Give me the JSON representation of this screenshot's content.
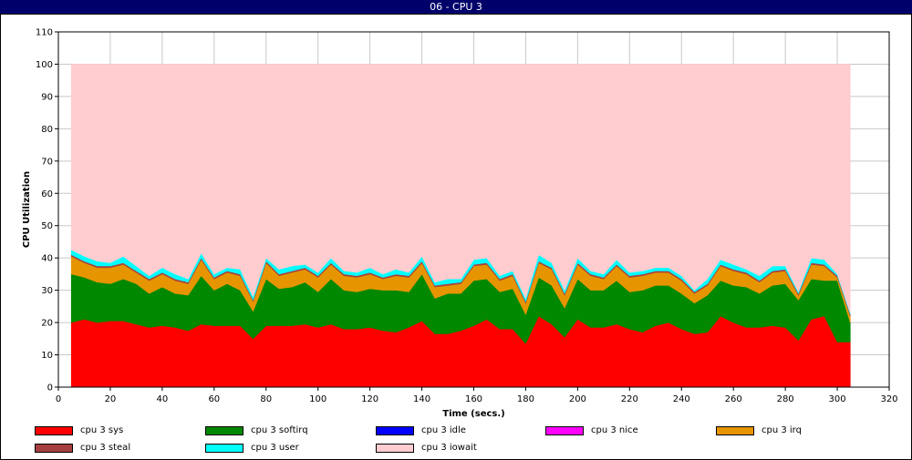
{
  "window": {
    "title": "06 - CPU 3"
  },
  "chart_data": {
    "type": "area",
    "stacked": true,
    "title": "06 - CPU 3",
    "xlabel": "Time (secs.)",
    "ylabel": "CPU Utilization",
    "xlim": [
      0,
      320
    ],
    "ylim": [
      0,
      110
    ],
    "xticks": [
      0,
      20,
      40,
      60,
      80,
      100,
      120,
      140,
      160,
      180,
      200,
      220,
      240,
      260,
      280,
      300,
      320
    ],
    "yticks": [
      0,
      10,
      20,
      30,
      40,
      50,
      60,
      70,
      80,
      90,
      100,
      110
    ],
    "grid": true,
    "legend_position": "bottom",
    "x": [
      5,
      10,
      15,
      20,
      25,
      30,
      35,
      40,
      45,
      50,
      55,
      60,
      65,
      70,
      75,
      80,
      85,
      90,
      95,
      100,
      105,
      110,
      115,
      120,
      125,
      130,
      135,
      140,
      145,
      150,
      155,
      160,
      165,
      170,
      175,
      180,
      185,
      190,
      195,
      200,
      205,
      210,
      215,
      220,
      225,
      230,
      235,
      240,
      245,
      250,
      255,
      260,
      265,
      270,
      275,
      280,
      285,
      290,
      295,
      300,
      305
    ],
    "series": [
      {
        "name": "cpu 3 sys",
        "color": "#ff0000",
        "values": [
          20,
          21,
          20,
          20.5,
          20.5,
          19.5,
          18.5,
          19,
          18.5,
          17.5,
          19.5,
          19,
          19,
          19,
          15,
          19,
          19,
          19,
          19.5,
          18.5,
          19.5,
          18,
          18,
          18.5,
          17.5,
          17,
          18.5,
          20.5,
          16.5,
          16.5,
          17.5,
          19,
          21,
          18,
          18,
          13.5,
          22,
          19.5,
          15.5,
          21,
          18.5,
          18.5,
          19.5,
          18,
          17,
          19,
          20,
          18,
          16.5,
          17,
          22,
          20,
          18.5,
          18.5,
          19,
          18.5,
          14.5,
          21,
          22,
          14,
          14
        ]
      },
      {
        "name": "cpu 3 softirq",
        "color": "#008800",
        "values": [
          15,
          13,
          12.5,
          11.5,
          13,
          12.5,
          10.5,
          12,
          10.5,
          11,
          15,
          11,
          13,
          11,
          8.5,
          14.5,
          11.5,
          12,
          13,
          11,
          14,
          12,
          11.5,
          12,
          12.5,
          13,
          11,
          14.5,
          11,
          12.5,
          11.5,
          14,
          12.5,
          11.5,
          12.5,
          9,
          12,
          12,
          9,
          12.5,
          11.5,
          11.5,
          13.5,
          11.5,
          13,
          12.5,
          11.5,
          11,
          9.5,
          11.5,
          11,
          11.5,
          12.5,
          10.5,
          12.5,
          13.5,
          12.5,
          12.5,
          11,
          19,
          6
        ]
      },
      {
        "name": "cpu 3 idle",
        "color": "#0000ff",
        "values": [
          0,
          0,
          0,
          0,
          0,
          0,
          0,
          0,
          0,
          0,
          0,
          0,
          0,
          0,
          0,
          0,
          0,
          0,
          0,
          0,
          0,
          0,
          0,
          0,
          0,
          0,
          0,
          0,
          0,
          0,
          0,
          0,
          0,
          0,
          0,
          0,
          0,
          0,
          0,
          0,
          0,
          0,
          0,
          0,
          0,
          0,
          0,
          0,
          0,
          0,
          0,
          0,
          0,
          0,
          0,
          0,
          0,
          0,
          0,
          0,
          0
        ]
      },
      {
        "name": "cpu 3 nice",
        "color": "#ff00ff",
        "values": [
          0,
          0,
          0,
          0,
          0,
          0,
          0,
          0,
          0,
          0,
          0,
          0,
          0,
          0,
          0,
          0,
          0,
          0,
          0,
          0,
          0,
          0,
          0,
          0,
          0,
          0,
          0,
          0,
          0,
          0,
          0,
          0,
          0,
          0,
          0,
          0,
          0,
          0,
          0,
          0,
          0,
          0,
          0,
          0,
          0,
          0,
          0,
          0,
          0,
          0,
          0,
          0,
          0,
          0,
          0,
          0,
          0,
          0,
          0,
          0,
          0
        ]
      },
      {
        "name": "cpu 3 irq",
        "color": "#e69500",
        "values": [
          5.5,
          4.5,
          4.5,
          5,
          4.5,
          3.5,
          4,
          4,
          4,
          3.5,
          5,
          3.5,
          3.5,
          4.5,
          3,
          5,
          4,
          4.5,
          4,
          4.5,
          4.5,
          4.5,
          4.5,
          4.5,
          3.5,
          4.5,
          4.5,
          3.5,
          3.5,
          2.5,
          3,
          4.5,
          4.5,
          3.5,
          4,
          3.5,
          4.5,
          5,
          4,
          4.5,
          4.5,
          3.5,
          4.5,
          4.5,
          4.5,
          4,
          4,
          4,
          3,
          3,
          4.5,
          4.5,
          4,
          3.5,
          4,
          4,
          1.5,
          4.5,
          4.5,
          1,
          2
        ]
      },
      {
        "name": "cpu 3 steal",
        "color": "#a64040",
        "values": [
          0.5,
          0.5,
          0.5,
          0.5,
          0.5,
          0.5,
          0.5,
          0.5,
          0.5,
          0.5,
          0.5,
          0.5,
          0.5,
          0.5,
          0.5,
          0.5,
          0.5,
          0.5,
          0.5,
          0.5,
          0.5,
          0.5,
          0.5,
          0.5,
          0.5,
          0.5,
          0.5,
          0.5,
          0.5,
          0.5,
          0.5,
          0.5,
          0.5,
          0.5,
          0.5,
          0.5,
          0.5,
          0.5,
          0.5,
          0.5,
          0.5,
          0.5,
          0.5,
          0.5,
          0.5,
          0.5,
          0.5,
          0.5,
          0.5,
          0.5,
          0.5,
          0.5,
          0.5,
          0.5,
          0.5,
          0.5,
          0.5,
          0.5,
          0.5,
          0.5,
          0.5
        ]
      },
      {
        "name": "cpu 3 user",
        "color": "#00ffff",
        "values": [
          1.5,
          1.5,
          1.5,
          1,
          2,
          1.5,
          1,
          1.5,
          1.5,
          1,
          1.5,
          1,
          1,
          1.5,
          1,
          1,
          1.5,
          1.5,
          1,
          1,
          1.5,
          1,
          1,
          1.5,
          1,
          1.5,
          1,
          1.5,
          1,
          1.5,
          1,
          1.5,
          1.5,
          1,
          1,
          1,
          2,
          1.5,
          1,
          1.5,
          1,
          1,
          1.5,
          1,
          1,
          1,
          1,
          1,
          0.5,
          1.5,
          1.5,
          1.5,
          1,
          1.5,
          1.5,
          1,
          0.5,
          1.5,
          1.5,
          0.5,
          0.5
        ]
      },
      {
        "name": "cpu 3 iowait",
        "color": "#ffccd0",
        "values": [
          57.5,
          59.5,
          61,
          61.5,
          59.5,
          62.5,
          65.5,
          63,
          65,
          66.5,
          58.5,
          65,
          63,
          63.5,
          72,
          60,
          63.5,
          62.5,
          62,
          64.5,
          60,
          64,
          64.5,
          63,
          65,
          63.5,
          64.5,
          59.5,
          67.5,
          66.5,
          66.5,
          60.5,
          60,
          65.5,
          64,
          72.5,
          59,
          61.5,
          70,
          60,
          64,
          65,
          60.5,
          64.5,
          64,
          63,
          63,
          65.5,
          70,
          66.5,
          60.5,
          62,
          63.5,
          65.5,
          62.5,
          62.5,
          70.5,
          60,
          60.5,
          65,
          77
        ]
      }
    ]
  }
}
